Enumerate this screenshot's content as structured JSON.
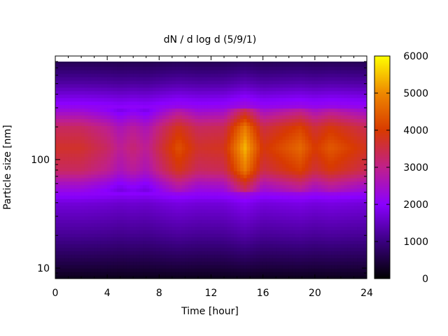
{
  "chart_data": {
    "type": "heatmap",
    "title": "dN / d log d (5/9/1)",
    "xlabel": "Time [hour]",
    "ylabel": "Particle size [nm]",
    "xlim": [
      0,
      24
    ],
    "ylim": [
      8,
      900
    ],
    "y_scale": "log",
    "x_ticks": [
      0,
      4,
      8,
      12,
      16,
      20,
      24
    ],
    "x_tick_labels": [
      "0",
      "4",
      "8",
      "12",
      "16",
      "20",
      "24"
    ],
    "y_ticks": [
      10,
      100
    ],
    "y_tick_labels": [
      "10",
      "100"
    ],
    "colorbar": {
      "min": 0,
      "max": 6000,
      "ticks": [
        0,
        1000,
        2000,
        3000,
        4000,
        5000,
        6000
      ],
      "tick_labels": [
        "0",
        "1000",
        "2000",
        "3000",
        "4000",
        "5000",
        "6000"
      ],
      "colormap": [
        "#000000",
        "#3a0080",
        "#8a00ff",
        "#c0208a",
        "#d83a00",
        "#ee8800",
        "#ffff00"
      ]
    },
    "size_profile": [
      {
        "size_nm": 8,
        "value": 200
      },
      {
        "size_nm": 10,
        "value": 450
      },
      {
        "size_nm": 20,
        "value": 1150
      },
      {
        "size_nm": 40,
        "value": 1700
      },
      {
        "size_nm": 60,
        "value": 2500
      },
      {
        "size_nm": 80,
        "value": 3300
      },
      {
        "size_nm": 130,
        "value": 3700
      },
      {
        "size_nm": 200,
        "value": 3300
      },
      {
        "size_nm": 300,
        "value": 2200
      },
      {
        "size_nm": 500,
        "value": 1300
      },
      {
        "size_nm": 900,
        "value": 500
      }
    ],
    "peak_intensity_by_hour": [
      {
        "hour": 0,
        "value": 3700
      },
      {
        "hour": 2,
        "value": 3700
      },
      {
        "hour": 4,
        "value": 3300
      },
      {
        "hour": 5,
        "value": 2900
      },
      {
        "hour": 6,
        "value": 3200
      },
      {
        "hour": 7,
        "value": 2900
      },
      {
        "hour": 8,
        "value": 3500
      },
      {
        "hour": 9.5,
        "value": 4300
      },
      {
        "hour": 11,
        "value": 3700
      },
      {
        "hour": 13,
        "value": 3800
      },
      {
        "hour": 14.6,
        "value": 5400
      },
      {
        "hour": 16,
        "value": 3900
      },
      {
        "hour": 18.9,
        "value": 4600
      },
      {
        "hour": 20,
        "value": 4000
      },
      {
        "hour": 21.2,
        "value": 4400
      },
      {
        "hour": 24,
        "value": 3800
      }
    ]
  }
}
